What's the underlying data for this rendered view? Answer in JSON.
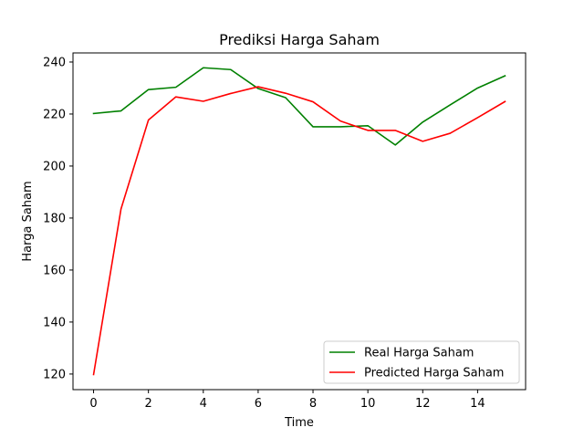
{
  "chart_data": {
    "type": "line",
    "title": "Prediksi Harga Saham",
    "xlabel": "Time",
    "ylabel": "Harga Saham",
    "xlim": [
      -0.75,
      15.75
    ],
    "ylim": [
      114,
      243.5
    ],
    "xticks": [
      0,
      2,
      4,
      6,
      8,
      10,
      12,
      14
    ],
    "yticks": [
      120,
      140,
      160,
      180,
      200,
      220,
      240
    ],
    "x": [
      0,
      1,
      2,
      3,
      4,
      5,
      6,
      7,
      8,
      9,
      10,
      11,
      12,
      13,
      14,
      15
    ],
    "series": [
      {
        "name": "Real Harga Saham",
        "color": "#008000",
        "values": [
          220.2,
          221.2,
          229.4,
          230.3,
          237.8,
          237.1,
          229.8,
          226.3,
          215.1,
          215.1,
          215.5,
          208.1,
          216.9,
          223.5,
          230.0,
          234.7
        ]
      },
      {
        "name": "Predicted Harga Saham",
        "color": "#ff0000",
        "values": [
          119.8,
          183.5,
          217.7,
          226.6,
          224.9,
          227.9,
          230.5,
          228.0,
          224.7,
          217.3,
          213.7,
          213.7,
          209.5,
          212.6,
          218.6,
          224.8
        ]
      }
    ],
    "legend": "lower right",
    "grid": false
  }
}
